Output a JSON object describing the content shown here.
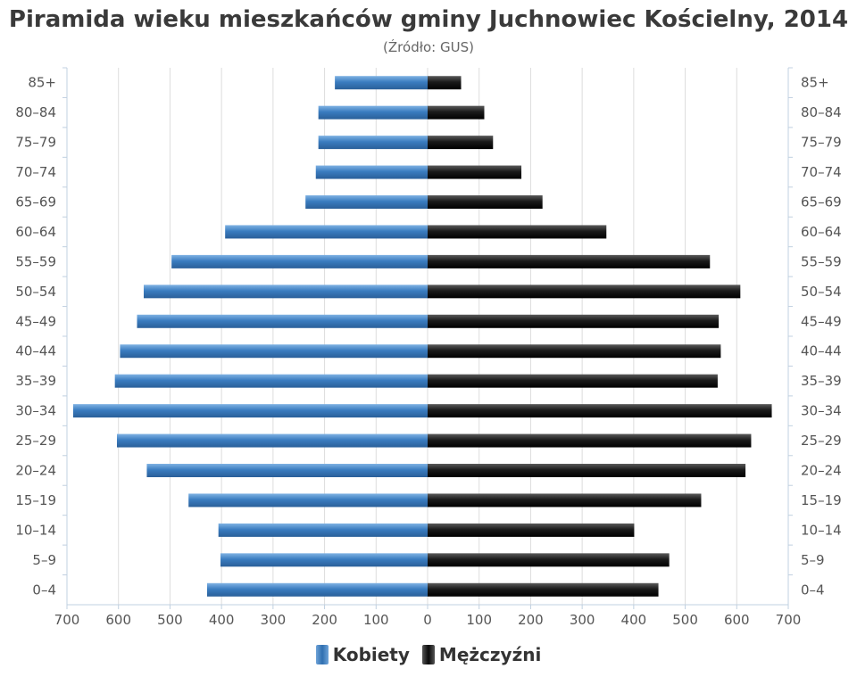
{
  "chart_data": {
    "type": "bar",
    "orientation": "horizontal-population-pyramid",
    "title": "Piramida wieku mieszkańców gminy Juchnowiec Kościelny, 2014",
    "subtitle": "(Źródło: GUS)",
    "categories": [
      "85+",
      "80–84",
      "75–79",
      "70–74",
      "65–69",
      "60–64",
      "55–59",
      "50–54",
      "45–49",
      "40–44",
      "35–39",
      "30–34",
      "25–29",
      "20–24",
      "15–19",
      "10–14",
      "5–9",
      "0–4"
    ],
    "series": [
      {
        "name": "Kobiety",
        "color": "#3a7cc0",
        "values": [
          180,
          212,
          212,
          217,
          237,
          393,
          497,
          551,
          564,
          597,
          607,
          688,
          603,
          545,
          464,
          406,
          402,
          428
        ]
      },
      {
        "name": "Mężczyźni",
        "color": "#111111",
        "values": [
          65,
          110,
          127,
          182,
          223,
          347,
          548,
          607,
          565,
          569,
          563,
          668,
          628,
          617,
          531,
          401,
          469,
          448
        ]
      }
    ],
    "xlim": [
      -700,
      700
    ],
    "x_ticks": [
      -700,
      -600,
      -500,
      -400,
      -300,
      -200,
      -100,
      0,
      100,
      200,
      300,
      400,
      500,
      600,
      700
    ],
    "x_tick_labels": [
      "700",
      "600",
      "500",
      "400",
      "300",
      "200",
      "100",
      "0",
      "100",
      "200",
      "300",
      "400",
      "500",
      "600",
      "700"
    ],
    "grid": true,
    "legend_position": "bottom-center"
  }
}
